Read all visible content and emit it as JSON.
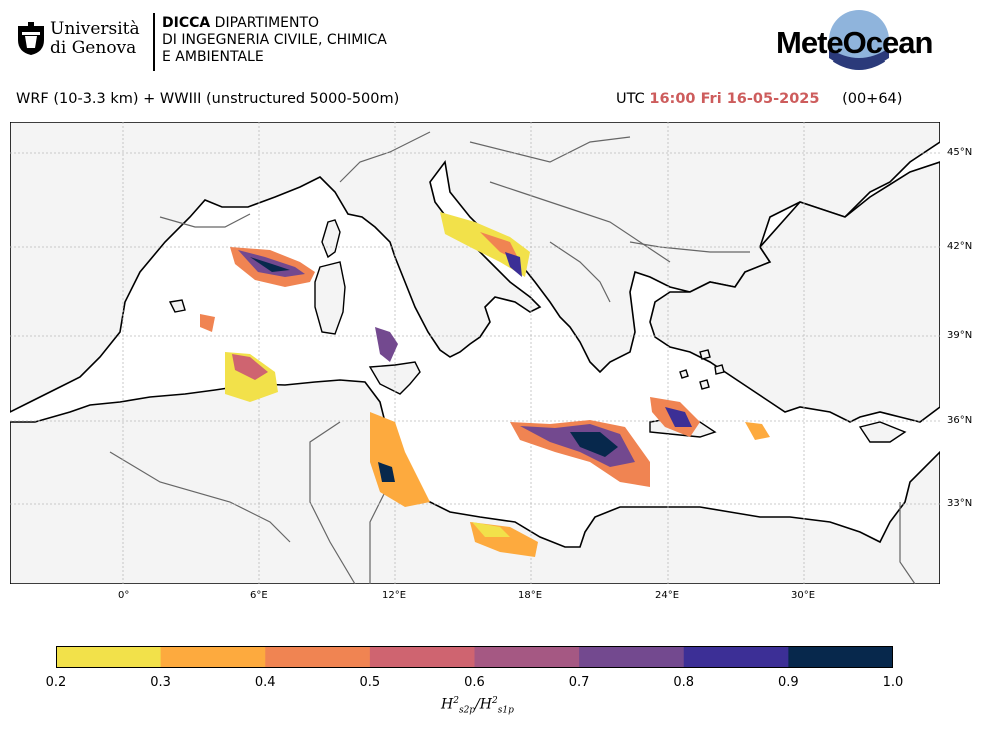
{
  "header": {
    "university_line1": "Università",
    "university_line2": "di Genova",
    "dept_bold": "DICCA",
    "dept_line1": " DIPARTIMENTO",
    "dept_line2": "DI INGEGNERIA CIVILE, CHIMICA",
    "dept_line3": "E AMBIENTALE",
    "brand": "MeteOcean"
  },
  "model": {
    "description": "WRF (10-3.3 km) + WWIII (unstructured 5000-500m)",
    "utc_prefix": "UTC",
    "datetime": "16:00 Fri 16-05-2025",
    "forecast_step": "(00+64)"
  },
  "map": {
    "lat_labels": [
      "45°N",
      "42°N",
      "39°N",
      "36°N",
      "33°N"
    ],
    "lon_labels": [
      "0°",
      "6°E",
      "12°E",
      "18°E",
      "24°E",
      "30°E"
    ]
  },
  "colorbar": {
    "ticks": [
      "0.2",
      "0.3",
      "0.4",
      "0.5",
      "0.6",
      "0.7",
      "0.8",
      "0.9",
      "1.0"
    ],
    "colors": [
      "#f2e14a",
      "#fdaa3e",
      "#f08452",
      "#cf6470",
      "#a55883",
      "#73498f",
      "#3c2f96",
      "#07284c"
    ],
    "label_base": "H",
    "label_sup": "2",
    "label_sub1": "s2p",
    "label_sub2": "s1p"
  }
}
